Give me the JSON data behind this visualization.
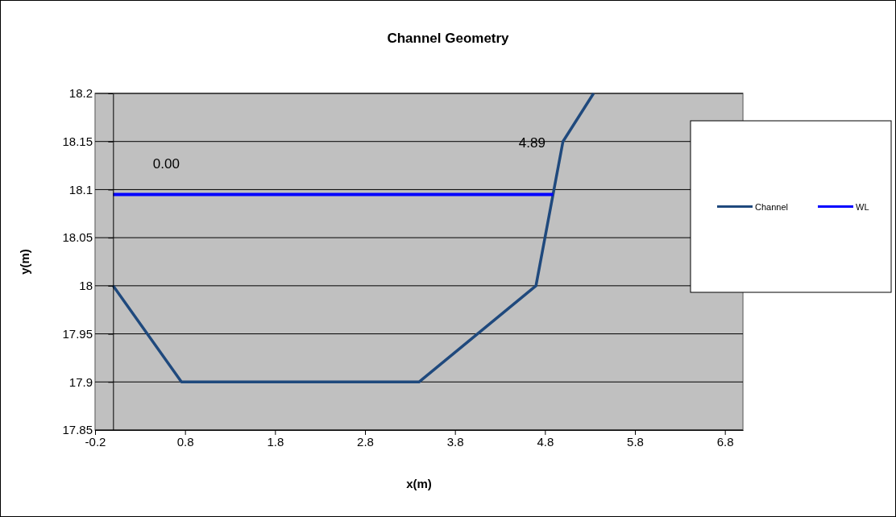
{
  "chart_data": {
    "type": "line",
    "title": "Channel Geometry",
    "xlabel": "x(m)",
    "ylabel": "y(m)",
    "xlim": [
      -0.2,
      7.0
    ],
    "xticks": [
      -0.2,
      0.8,
      1.8,
      2.8,
      3.8,
      4.8,
      5.8,
      6.8
    ],
    "ylim": [
      17.85,
      18.2
    ],
    "yticks": [
      17.85,
      17.9,
      17.95,
      18,
      18.05,
      18.1,
      18.15,
      18.2
    ],
    "grid": "y",
    "legend": "right",
    "line_style": "solid",
    "marker": "none",
    "series": [
      {
        "name": "Channel",
        "color": "#1f497d",
        "x": [
          0,
          0.76,
          3.4,
          4.7,
          5.0,
          5.34
        ],
        "values": [
          18,
          17.9,
          17.9,
          18,
          18.15,
          18.2
        ]
      },
      {
        "name": "WL",
        "color": "#0000ff",
        "x": [
          0,
          4.89
        ],
        "values": [
          18.095,
          18.095
        ]
      }
    ],
    "annotations": [
      "0.00",
      "4.89"
    ]
  }
}
